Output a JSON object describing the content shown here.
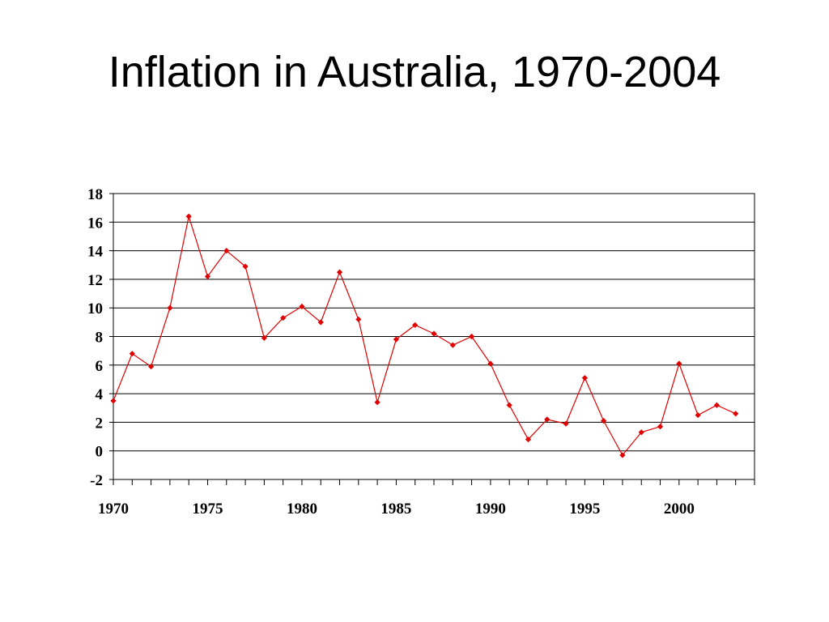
{
  "slide": {
    "title": "Inflation in Australia, 1970-2004"
  },
  "colors": {
    "series": "#e00000",
    "axis": "#000000",
    "grid": "#000000",
    "background": "#ffffff"
  },
  "chart_data": {
    "type": "line",
    "title": "",
    "xlabel": "",
    "ylabel": "",
    "ylim": [
      -2,
      18
    ],
    "xlim": [
      1970,
      2004
    ],
    "yticks": [
      -2,
      0,
      2,
      4,
      6,
      8,
      10,
      12,
      14,
      16,
      18
    ],
    "xtick_labels": [
      "1970",
      "1975",
      "1980",
      "1985",
      "1990",
      "1995",
      "2000"
    ],
    "grid": "horizontal",
    "legend": "none",
    "marker": "diamond",
    "x": [
      1970,
      1971,
      1972,
      1973,
      1974,
      1975,
      1976,
      1977,
      1978,
      1979,
      1980,
      1981,
      1982,
      1983,
      1984,
      1985,
      1986,
      1987,
      1988,
      1989,
      1990,
      1991,
      1992,
      1993,
      1994,
      1995,
      1996,
      1997,
      1998,
      1999,
      2000,
      2001,
      2002,
      2003
    ],
    "series": [
      {
        "values": [
          3.5,
          6.8,
          5.9,
          10.0,
          16.4,
          12.2,
          14.0,
          12.9,
          7.9,
          9.3,
          10.1,
          9.0,
          12.5,
          9.2,
          3.4,
          7.8,
          8.8,
          8.2,
          7.4,
          8.0,
          6.1,
          3.2,
          0.8,
          2.2,
          1.9,
          5.1,
          2.1,
          -0.3,
          1.3,
          1.7,
          6.1,
          2.5,
          3.2,
          2.6
        ]
      }
    ]
  }
}
